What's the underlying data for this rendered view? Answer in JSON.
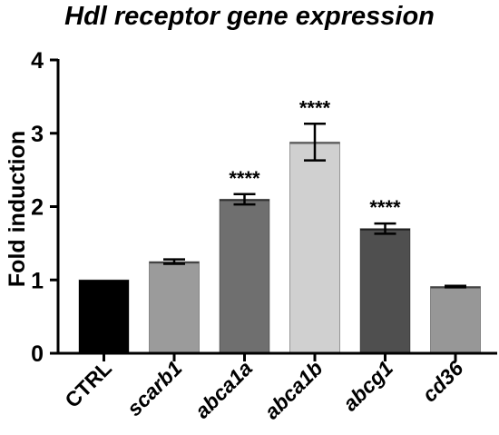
{
  "chart_data": {
    "type": "bar",
    "title": "Hdl receptor gene expression",
    "ylabel": "Fold induction",
    "xlabel": "",
    "ylim": [
      0,
      4
    ],
    "yticks": [
      0,
      1,
      2,
      3,
      4
    ],
    "grid": false,
    "categories": [
      "CTRL",
      "scarb1",
      "abca1a",
      "abca1b",
      "abcg1",
      "cd36"
    ],
    "category_italic": [
      false,
      true,
      true,
      true,
      true,
      true
    ],
    "values": [
      1.0,
      1.25,
      2.1,
      2.88,
      1.7,
      0.91
    ],
    "errors": [
      0.0,
      0.03,
      0.07,
      0.25,
      0.07,
      0.01
    ],
    "significance": [
      "",
      "",
      "****",
      "****",
      "****",
      ""
    ],
    "colors": [
      "#000000",
      "#9b9b9b",
      "#6f6f6f",
      "#d0d0d0",
      "#4f4f4f",
      "#979797"
    ]
  }
}
